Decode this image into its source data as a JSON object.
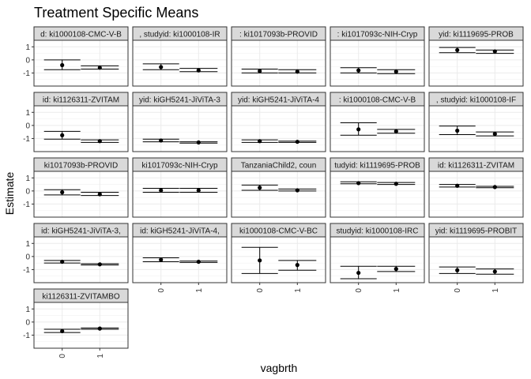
{
  "chart_data": {
    "type": "faceted-errorbar",
    "title": "Treatment Specific Means",
    "xlabel": "vagbrth",
    "ylabel": "Estimate",
    "categories": [
      "0",
      "1"
    ],
    "ylim": [
      -2.0,
      1.5
    ],
    "yticks": [
      1,
      0,
      -1
    ],
    "grid": true,
    "facets": [
      {
        "label": "d: ki1000108-CMC-V-B",
        "points": [
          {
            "x": "0",
            "y": -0.4,
            "lo": -0.75,
            "hi": 0.0
          },
          {
            "x": "1",
            "y": -0.6,
            "lo": -0.7,
            "hi": -0.45
          }
        ]
      },
      {
        "label": ", studyid: ki1000108-IR",
        "points": [
          {
            "x": "0",
            "y": -0.55,
            "lo": -0.75,
            "hi": -0.3
          },
          {
            "x": "1",
            "y": -0.8,
            "lo": -0.9,
            "hi": -0.65
          }
        ]
      },
      {
        "label": ": ki1017093b-PROVID",
        "points": [
          {
            "x": "0",
            "y": -0.85,
            "lo": -1.0,
            "hi": -0.7
          },
          {
            "x": "1",
            "y": -0.9,
            "lo": -1.0,
            "hi": -0.75
          }
        ]
      },
      {
        "label": ": ki1017093c-NIH-Cryp",
        "points": [
          {
            "x": "0",
            "y": -0.8,
            "lo": -1.0,
            "hi": -0.6
          },
          {
            "x": "1",
            "y": -0.9,
            "lo": -1.05,
            "hi": -0.75
          }
        ]
      },
      {
        "label": "yid: ki1119695-PROB",
        "points": [
          {
            "x": "0",
            "y": 0.75,
            "lo": 0.55,
            "hi": 0.95
          },
          {
            "x": "1",
            "y": 0.65,
            "lo": 0.5,
            "hi": 0.75
          }
        ]
      },
      {
        "label": "id: ki1126311-ZVITAM",
        "points": [
          {
            "x": "0",
            "y": -0.75,
            "lo": -1.05,
            "hi": -0.45
          },
          {
            "x": "1",
            "y": -1.2,
            "lo": -1.3,
            "hi": -1.1
          }
        ]
      },
      {
        "label": "yid: kiGH5241-JiViTA-3",
        "points": [
          {
            "x": "0",
            "y": -1.15,
            "lo": -1.25,
            "hi": -1.05
          },
          {
            "x": "1",
            "y": -1.3,
            "lo": -1.35,
            "hi": -1.25
          }
        ]
      },
      {
        "label": "yid: kiGH5241-JiViTA-4",
        "points": [
          {
            "x": "0",
            "y": -1.2,
            "lo": -1.3,
            "hi": -1.1
          },
          {
            "x": "1",
            "y": -1.25,
            "lo": -1.3,
            "hi": -1.2
          }
        ]
      },
      {
        "label": ": ki1000108-CMC-V-B",
        "points": [
          {
            "x": "0",
            "y": -0.3,
            "lo": -0.75,
            "hi": 0.2
          },
          {
            "x": "1",
            "y": -0.45,
            "lo": -0.6,
            "hi": -0.3
          }
        ]
      },
      {
        "label": ", studyid: ki1000108-IF",
        "points": [
          {
            "x": "0",
            "y": -0.4,
            "lo": -0.7,
            "hi": -0.05
          },
          {
            "x": "1",
            "y": -0.65,
            "lo": -0.8,
            "hi": -0.5
          }
        ]
      },
      {
        "label": "ki1017093b-PROVID",
        "points": [
          {
            "x": "0",
            "y": -0.1,
            "lo": -0.3,
            "hi": 0.1
          },
          {
            "x": "1",
            "y": -0.25,
            "lo": -0.35,
            "hi": -0.1
          }
        ]
      },
      {
        "label": "ki1017093c-NIH-Cryp",
        "points": [
          {
            "x": "0",
            "y": 0.05,
            "lo": -0.1,
            "hi": 0.2
          },
          {
            "x": "1",
            "y": 0.05,
            "lo": -0.1,
            "hi": 0.2
          }
        ]
      },
      {
        "label": "TanzaniaChild2, coun",
        "points": [
          {
            "x": "0",
            "y": 0.25,
            "lo": 0.05,
            "hi": 0.45
          },
          {
            "x": "1",
            "y": 0.05,
            "lo": 0.0,
            "hi": 0.15
          }
        ]
      },
      {
        "label": "tudyid: ki1119695-PROB",
        "points": [
          {
            "x": "0",
            "y": 0.6,
            "lo": 0.55,
            "hi": 0.7
          },
          {
            "x": "1",
            "y": 0.55,
            "lo": 0.5,
            "hi": 0.65
          }
        ]
      },
      {
        "label": "id: ki1126311-ZVITAM",
        "points": [
          {
            "x": "0",
            "y": 0.4,
            "lo": 0.3,
            "hi": 0.5
          },
          {
            "x": "1",
            "y": 0.3,
            "lo": 0.25,
            "hi": 0.35
          }
        ]
      },
      {
        "label": "id: kiGH5241-JiViTA-3,",
        "points": [
          {
            "x": "0",
            "y": -0.4,
            "lo": -0.5,
            "hi": -0.3
          },
          {
            "x": "1",
            "y": -0.6,
            "lo": -0.65,
            "hi": -0.55
          }
        ]
      },
      {
        "label": "id: kiGH5241-JiViTA-4,",
        "points": [
          {
            "x": "0",
            "y": -0.25,
            "lo": -0.4,
            "hi": -0.1
          },
          {
            "x": "1",
            "y": -0.4,
            "lo": -0.45,
            "hi": -0.35
          }
        ]
      },
      {
        "label": "ki1000108-CMC-V-BC",
        "points": [
          {
            "x": "0",
            "y": -0.3,
            "lo": -1.3,
            "hi": 0.7
          },
          {
            "x": "1",
            "y": -0.65,
            "lo": -1.05,
            "hi": -0.3
          }
        ]
      },
      {
        "label": "studyid: ki1000108-IRC",
        "points": [
          {
            "x": "0",
            "y": -1.25,
            "lo": -1.7,
            "hi": -0.75
          },
          {
            "x": "1",
            "y": -0.95,
            "lo": -1.15,
            "hi": -0.75
          }
        ]
      },
      {
        "label": "yid: ki1119695-PROBIT",
        "points": [
          {
            "x": "0",
            "y": -1.05,
            "lo": -1.3,
            "hi": -0.8
          },
          {
            "x": "1",
            "y": -1.15,
            "lo": -1.35,
            "hi": -0.95
          }
        ]
      },
      {
        "label": "ki1126311-ZVITAMBO",
        "points": [
          {
            "x": "0",
            "y": -0.7,
            "lo": -0.8,
            "hi": -0.55
          },
          {
            "x": "1",
            "y": -0.5,
            "lo": -0.55,
            "hi": -0.45
          }
        ]
      }
    ]
  }
}
